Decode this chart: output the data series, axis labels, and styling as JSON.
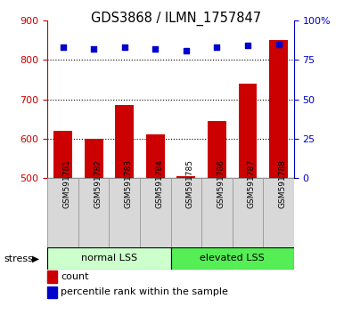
{
  "title": "GDS3868 / ILMN_1757847",
  "samples": [
    "GSM591781",
    "GSM591782",
    "GSM591783",
    "GSM591784",
    "GSM591785",
    "GSM591786",
    "GSM591787",
    "GSM591788"
  ],
  "counts": [
    620,
    600,
    685,
    610,
    505,
    645,
    740,
    850
  ],
  "percentiles": [
    83,
    82,
    83,
    82,
    81,
    83,
    84,
    85
  ],
  "ylim_left": [
    500,
    900
  ],
  "ylim_right": [
    0,
    100
  ],
  "yticks_left": [
    500,
    600,
    700,
    800,
    900
  ],
  "yticks_right": [
    0,
    25,
    50,
    75,
    100
  ],
  "ytick_labels_right": [
    "0",
    "25",
    "50",
    "75",
    "100%"
  ],
  "bar_color": "#cc0000",
  "dot_color": "#0000cc",
  "group1_label": "normal LSS",
  "group2_label": "elevated LSS",
  "group1_color": "#ccffcc",
  "group2_color": "#55ee55",
  "stress_label": "stress",
  "legend_count": "count",
  "legend_pct": "percentile rank within the sample",
  "sample_box_color": "#d8d8d8",
  "left_tick_color": "#cc0000",
  "right_tick_color": "#0000cc"
}
